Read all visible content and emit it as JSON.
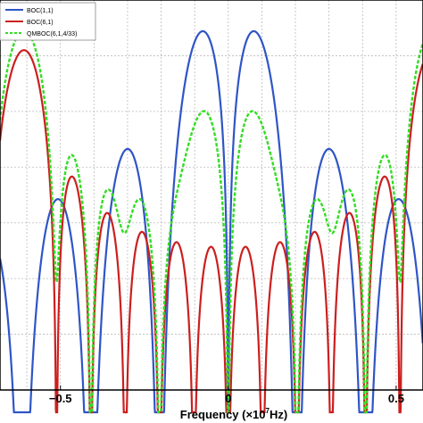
{
  "chart_data": {
    "type": "line",
    "xlabel_prefix": "Frequency (×10",
    "xlabel_exp": "7",
    "xlabel_suffix": "Hz)",
    "xlim": [
      -0.68,
      0.58
    ],
    "ylim": [
      -90,
      -55
    ],
    "x_ticks": [
      {
        "value": -0.5,
        "label": "−0.5"
      },
      {
        "value": 0,
        "label": "0"
      },
      {
        "value": 0.5,
        "label": "0.5"
      }
    ],
    "grid": true,
    "legend_position": "top-left",
    "series": [
      {
        "name": "BOC(1,1)",
        "color": "#2f55c6",
        "style": "solid",
        "fs_mhz": 1.023,
        "n": 2,
        "mix": [
          1,
          0
        ],
        "peak_db": -57.8
      },
      {
        "name": "BOC(6,1)",
        "color": "#cc1f1f",
        "style": "solid",
        "fs_mhz": 6.138,
        "n": 12,
        "mix": [
          1,
          0
        ],
        "peak_db": -59.5
      },
      {
        "name": "QMBOC(6,1,4/33)",
        "color": "#33dd22",
        "style": "dashed",
        "fs_mhz": 6.138,
        "n": 12,
        "mix": [
          0.8788,
          0.1212
        ],
        "peak_db": -57.7,
        "bias_mhz": 1.023
      }
    ]
  }
}
